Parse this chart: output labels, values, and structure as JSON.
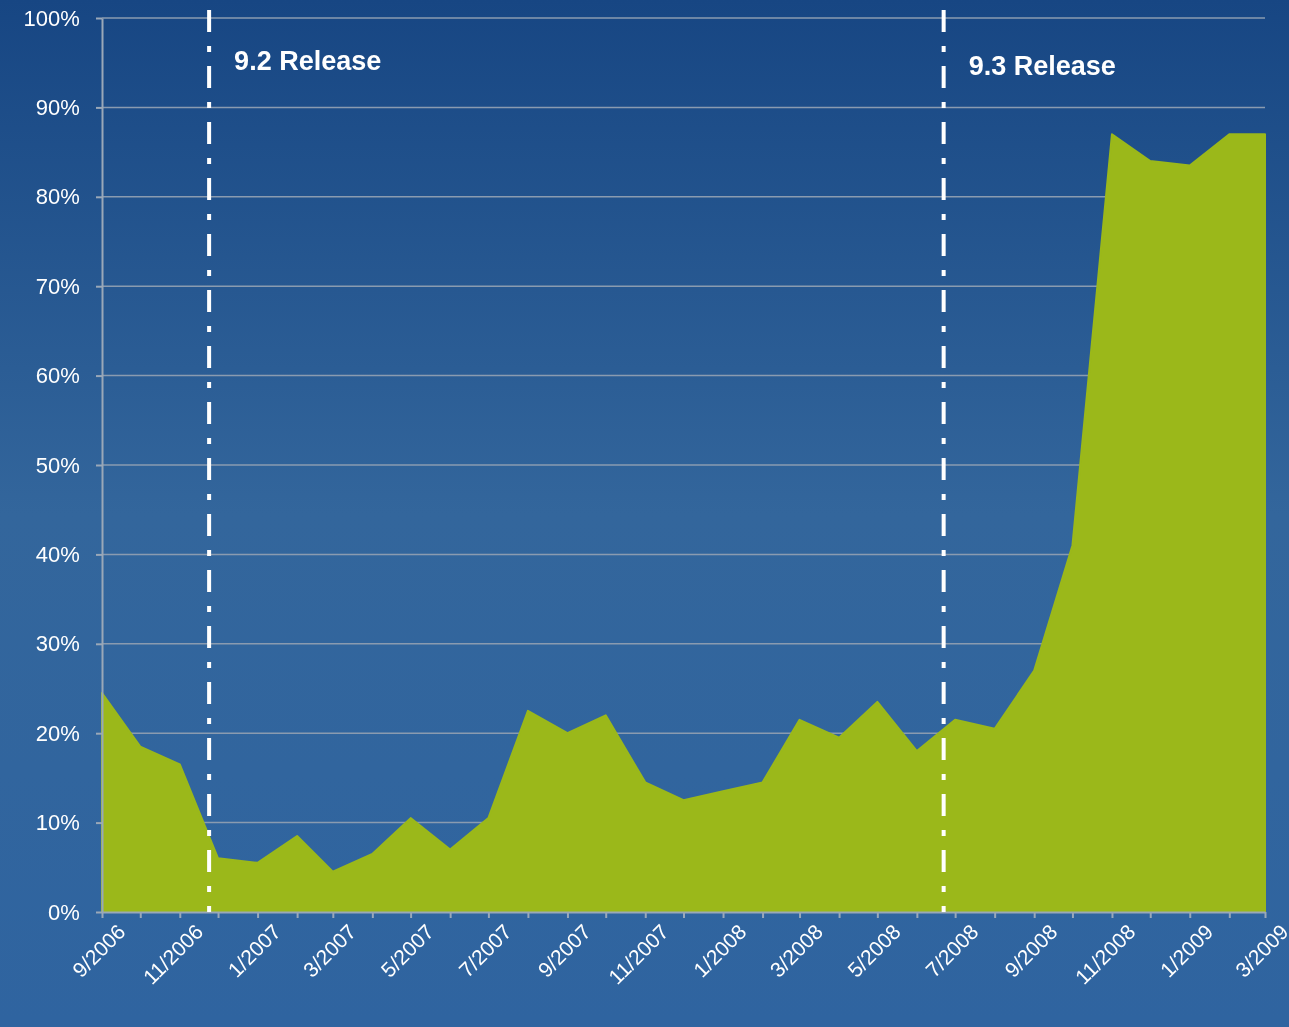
{
  "chart_data": {
    "type": "area",
    "x": [
      "2006-09",
      "2006-10",
      "2006-11",
      "2006-12",
      "2007-01",
      "2007-02",
      "2007-03",
      "2007-04",
      "2007-05",
      "2007-06",
      "2007-07",
      "2007-08",
      "2007-09",
      "2007-10",
      "2007-11",
      "2007-12",
      "2008-01",
      "2008-02",
      "2008-03",
      "2008-04",
      "2008-05",
      "2008-06",
      "2008-07",
      "2008-08",
      "2008-09",
      "2008-10",
      "2008-11",
      "2008-12",
      "2009-01",
      "2009-02",
      "2009-03"
    ],
    "series": [
      {
        "color": "#9bb81a",
        "values": [
          24.5,
          18.5,
          16.5,
          6,
          5.5,
          8.5,
          4.5,
          6.5,
          10.5,
          7,
          10.5,
          22.5,
          20,
          22,
          14.5,
          12.5,
          13.5,
          14.5,
          21.5,
          19.5,
          23.5,
          18,
          21.5,
          20.5,
          27,
          41,
          87,
          84,
          83.5,
          87,
          87
        ]
      }
    ],
    "xlim": [
      "2006-09",
      "2009-03"
    ],
    "xticks": [
      {
        "value": "2006-09",
        "label": "9/2006"
      },
      {
        "value": "2006-10",
        "label": null
      },
      {
        "value": "2006-11",
        "label": "11/2006"
      },
      {
        "value": "2006-12",
        "label": null
      },
      {
        "value": "2007-01",
        "label": "1/2007"
      },
      {
        "value": "2007-02",
        "label": null
      },
      {
        "value": "2007-03",
        "label": "3/2007"
      },
      {
        "value": "2007-04",
        "label": null
      },
      {
        "value": "2007-05",
        "label": "5/2007"
      },
      {
        "value": "2007-06",
        "label": null
      },
      {
        "value": "2007-07",
        "label": "7/2007"
      },
      {
        "value": "2007-08",
        "label": null
      },
      {
        "value": "2007-09",
        "label": "9/2007"
      },
      {
        "value": "2007-10",
        "label": null
      },
      {
        "value": "2007-11",
        "label": "11/2007"
      },
      {
        "value": "2007-12",
        "label": null
      },
      {
        "value": "2008-01",
        "label": "1/2008"
      },
      {
        "value": "2008-02",
        "label": null
      },
      {
        "value": "2008-03",
        "label": "3/2008"
      },
      {
        "value": "2008-04",
        "label": null
      },
      {
        "value": "2008-05",
        "label": "5/2008"
      },
      {
        "value": "2008-06",
        "label": null
      },
      {
        "value": "2008-07",
        "label": "7/2008"
      },
      {
        "value": "2008-08",
        "label": null
      },
      {
        "value": "2008-09",
        "label": "9/2008"
      },
      {
        "value": "2008-10",
        "label": null
      },
      {
        "value": "2008-11",
        "label": "11/2008"
      },
      {
        "value": "2008-12",
        "label": null
      },
      {
        "value": "2009-01",
        "label": "1/2009"
      },
      {
        "value": "2009-02",
        "label": null
      },
      {
        "value": "2009-03",
        "label": "3/2009"
      }
    ],
    "ylim": [
      0,
      100
    ],
    "yticks": [
      {
        "value": 0,
        "label": "0%"
      },
      {
        "value": 10,
        "label": "10%"
      },
      {
        "value": 20,
        "label": "20%"
      },
      {
        "value": 30,
        "label": "30%"
      },
      {
        "value": 40,
        "label": "40%"
      },
      {
        "value": 50,
        "label": "50%"
      },
      {
        "value": 60,
        "label": "60%"
      },
      {
        "value": 70,
        "label": "70%"
      },
      {
        "value": 80,
        "label": "80%"
      },
      {
        "value": 90,
        "label": "90%"
      },
      {
        "value": 100,
        "label": "100%"
      }
    ],
    "grid": "y",
    "ref_lines": [
      {
        "axis": "x",
        "value": "2006-11-24",
        "label": "9.2 Release",
        "color": "#ffffff",
        "line_style": "dashdot"
      },
      {
        "axis": "x",
        "value": "2008-06-22",
        "label": "9.3 Release",
        "color": "#ffffff",
        "line_style": "dashdot"
      }
    ]
  }
}
